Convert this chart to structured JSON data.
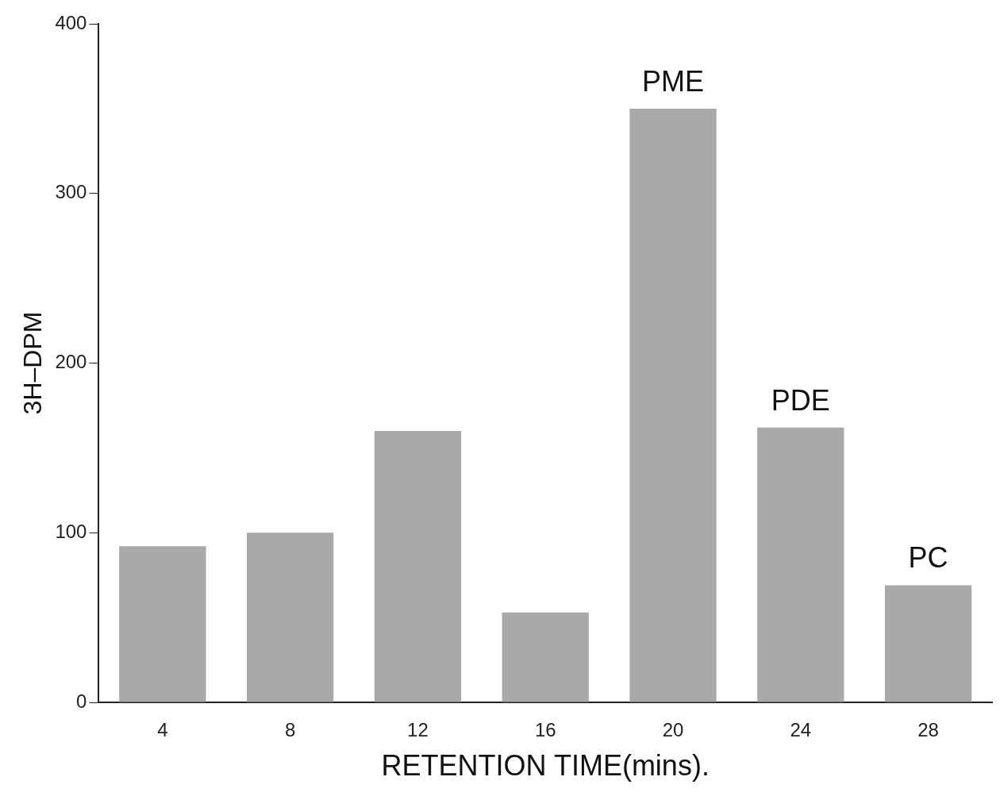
{
  "chart_data": {
    "type": "bar",
    "xlabel": "RETENTION TIME(mins).",
    "ylabel": "3H–DPM",
    "categories": [
      "4",
      "8",
      "12",
      "16",
      "20",
      "24",
      "28"
    ],
    "values": [
      92,
      100,
      160,
      53,
      350,
      162,
      69
    ],
    "color": "#a9a9a9",
    "ylim": [
      0,
      400
    ],
    "yticks": [
      0,
      100,
      200,
      300,
      400
    ],
    "grid": false,
    "legend": false,
    "annotations": [
      {
        "text": "PME",
        "x": "20",
        "y": 350
      },
      {
        "text": "PDE",
        "x": "24",
        "y": 162
      },
      {
        "text": "PC",
        "x": "28",
        "y": 69
      }
    ]
  }
}
